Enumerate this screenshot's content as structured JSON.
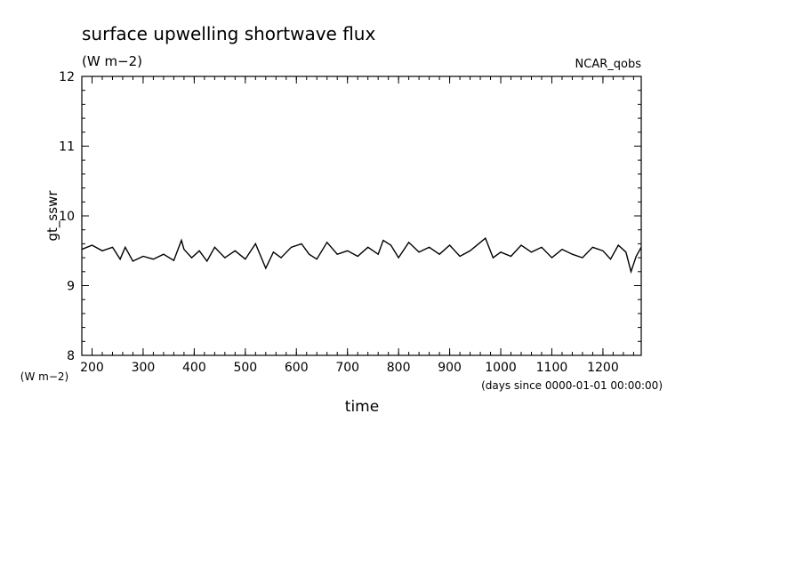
{
  "chart_data": {
    "type": "line",
    "title": "surface upwelling shortwave flux",
    "subtitle": "(W m−2)",
    "source_label": "NCAR_qobs",
    "xlabel": "time",
    "x_units": "(days since 0000-01-01 00:00:00)",
    "ylabel": "gt_sswr",
    "y_units": "(W m−2)",
    "xlim": [
      180,
      1275
    ],
    "ylim": [
      8,
      12
    ],
    "x_ticks": [
      200,
      300,
      400,
      500,
      600,
      700,
      800,
      900,
      1000,
      1100,
      1200
    ],
    "y_ticks": [
      8,
      9,
      10,
      11,
      12
    ],
    "grid": false,
    "line_color": "#000000",
    "series": [
      {
        "x": [
          180,
          200,
          220,
          240,
          255,
          265,
          280,
          300,
          320,
          340,
          360,
          375,
          380,
          395,
          410,
          425,
          440,
          460,
          480,
          500,
          520,
          540,
          555,
          570,
          590,
          610,
          625,
          640,
          660,
          680,
          700,
          720,
          740,
          760,
          770,
          785,
          800,
          820,
          840,
          860,
          880,
          900,
          920,
          940,
          960,
          970,
          985,
          1000,
          1020,
          1040,
          1060,
          1080,
          1100,
          1120,
          1140,
          1160,
          1180,
          1200,
          1215,
          1230,
          1245,
          1255,
          1265,
          1275
        ],
        "y": [
          9.52,
          9.58,
          9.5,
          9.55,
          9.38,
          9.55,
          9.35,
          9.42,
          9.38,
          9.45,
          9.36,
          9.65,
          9.52,
          9.4,
          9.5,
          9.35,
          9.55,
          9.4,
          9.5,
          9.38,
          9.6,
          9.25,
          9.48,
          9.4,
          9.55,
          9.6,
          9.45,
          9.38,
          9.62,
          9.45,
          9.5,
          9.42,
          9.55,
          9.45,
          9.65,
          9.58,
          9.4,
          9.62,
          9.48,
          9.55,
          9.45,
          9.58,
          9.42,
          9.5,
          9.62,
          9.68,
          9.4,
          9.48,
          9.42,
          9.58,
          9.48,
          9.55,
          9.4,
          9.52,
          9.45,
          9.4,
          9.55,
          9.5,
          9.38,
          9.58,
          9.48,
          9.2,
          9.42,
          9.55
        ]
      }
    ]
  }
}
